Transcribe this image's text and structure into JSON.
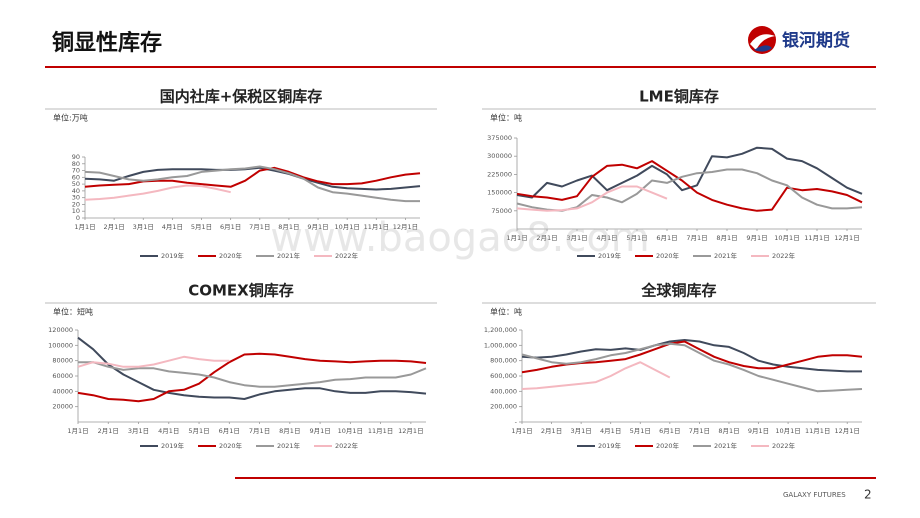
{
  "header": {
    "title": "铜显性库存",
    "logo": "银河期货"
  },
  "footer": {
    "brand": "GALAXY FUTURES",
    "page": "2"
  },
  "watermark": "www.baogao8.com",
  "chart_data": [
    {
      "type": "line",
      "title": "国内社库+保税区铜库存",
      "unit": "单位:万吨",
      "categories": [
        "1月1日",
        null,
        "2月1日",
        null,
        "3月1日",
        null,
        "4月1日",
        null,
        "5月1日",
        null,
        "6月1日",
        null,
        "7月1日",
        null,
        "8月1日",
        null,
        "9月1日",
        null,
        "10月1日",
        null,
        "11月1日",
        null,
        "12月1日",
        null
      ],
      "ylim": [
        0,
        90
      ],
      "yticks": [
        0,
        10,
        20,
        30,
        40,
        50,
        60,
        70,
        80,
        90
      ],
      "series": [
        {
          "name": "2019年",
          "color": "#404a5c",
          "values": [
            58,
            57,
            55,
            62,
            68,
            71,
            72,
            72,
            72,
            71,
            71,
            72,
            74,
            70,
            65,
            58,
            52,
            46,
            44,
            43,
            42,
            43,
            45,
            47
          ]
        },
        {
          "name": "2020年",
          "color": "#c00000",
          "values": [
            46,
            48,
            49,
            50,
            54,
            55,
            55,
            52,
            50,
            48,
            46,
            55,
            70,
            74,
            68,
            60,
            54,
            50,
            50,
            51,
            55,
            60,
            64,
            66
          ]
        },
        {
          "name": "2021年",
          "color": "#999999",
          "values": [
            68,
            67,
            62,
            57,
            55,
            57,
            60,
            62,
            68,
            70,
            72,
            73,
            76,
            72,
            66,
            58,
            45,
            38,
            36,
            33,
            30,
            27,
            25,
            25
          ]
        },
        {
          "name": "2022年",
          "color": "#f4b8c0",
          "values": [
            27,
            28,
            30,
            33,
            36,
            40,
            45,
            48,
            47,
            43,
            38,
            null,
            null,
            null,
            null,
            null,
            null,
            null,
            null,
            null,
            null,
            null,
            null,
            null
          ]
        }
      ]
    },
    {
      "type": "line",
      "title": "LME铜库存",
      "unit": "单位：吨",
      "categories": [
        "1月1日",
        null,
        "2月1日",
        null,
        "3月1日",
        null,
        "4月1日",
        null,
        "5月1日",
        null,
        "6月1日",
        null,
        "7月1日",
        null,
        "8月1日",
        null,
        "9月1日",
        null,
        "10月1日",
        null,
        "11月1日",
        null,
        "12月1日",
        null
      ],
      "ylim": [
        0,
        375000
      ],
      "yticks": [
        75000,
        150000,
        225000,
        300000,
        375000
      ],
      "series": [
        {
          "name": "2019年",
          "color": "#404a5c",
          "values": [
            140000,
            130000,
            190000,
            175000,
            200000,
            220000,
            160000,
            190000,
            220000,
            260000,
            225000,
            160000,
            180000,
            300000,
            295000,
            310000,
            335000,
            330000,
            290000,
            280000,
            250000,
            210000,
            170000,
            145000
          ]
        },
        {
          "name": "2020年",
          "color": "#c00000",
          "values": [
            145000,
            135000,
            130000,
            120000,
            135000,
            215000,
            260000,
            265000,
            250000,
            280000,
            240000,
            200000,
            150000,
            120000,
            100000,
            85000,
            75000,
            80000,
            170000,
            160000,
            165000,
            155000,
            140000,
            110000
          ]
        },
        {
          "name": "2021年",
          "color": "#999999",
          "values": [
            105000,
            90000,
            80000,
            75000,
            90000,
            140000,
            130000,
            110000,
            145000,
            200000,
            190000,
            215000,
            230000,
            235000,
            245000,
            245000,
            230000,
            200000,
            180000,
            130000,
            100000,
            85000,
            85000,
            90000
          ]
        },
        {
          "name": "2022年",
          "color": "#f4b8c0",
          "values": [
            85000,
            80000,
            75000,
            78000,
            85000,
            110000,
            150000,
            175000,
            175000,
            150000,
            125000,
            null,
            null,
            null,
            null,
            null,
            null,
            null,
            null,
            null,
            null,
            null,
            null,
            null
          ]
        }
      ]
    },
    {
      "type": "line",
      "title": "COMEX铜库存",
      "unit": "单位：短吨",
      "categories": [
        "1月1日",
        null,
        "2月1日",
        null,
        "3月1日",
        null,
        "4月1日",
        null,
        "5月1日",
        null,
        "6月1日",
        null,
        "7月1日",
        null,
        "8月1日",
        null,
        "9月1日",
        null,
        "10月1日",
        null,
        "11月1日",
        null,
        "12月1日",
        null
      ],
      "ylim": [
        0,
        120000
      ],
      "yticks": [
        20000,
        40000,
        60000,
        80000,
        100000,
        120000
      ],
      "series": [
        {
          "name": "2019年",
          "color": "#404a5c",
          "values": [
            110000,
            95000,
            75000,
            62000,
            52000,
            42000,
            38000,
            35000,
            33000,
            32000,
            32000,
            30000,
            36000,
            40000,
            42000,
            44000,
            44000,
            40000,
            38000,
            38000,
            40000,
            40000,
            39000,
            37000
          ]
        },
        {
          "name": "2020年",
          "color": "#c00000",
          "values": [
            38000,
            35000,
            30000,
            29000,
            27000,
            30000,
            40000,
            42000,
            50000,
            65000,
            78000,
            88000,
            89000,
            88000,
            85000,
            82000,
            80000,
            79000,
            78000,
            79000,
            80000,
            80000,
            79000,
            77000
          ]
        },
        {
          "name": "2021年",
          "color": "#999999",
          "values": [
            78000,
            78000,
            72000,
            68000,
            70000,
            70000,
            66000,
            64000,
            62000,
            58000,
            52000,
            48000,
            46000,
            46000,
            48000,
            50000,
            52000,
            55000,
            56000,
            58000,
            58000,
            58000,
            62000,
            70000
          ]
        },
        {
          "name": "2022年",
          "color": "#f4b8c0",
          "values": [
            72000,
            78000,
            76000,
            72000,
            72000,
            75000,
            80000,
            85000,
            82000,
            80000,
            80000,
            null,
            null,
            null,
            null,
            null,
            null,
            null,
            null,
            null,
            null,
            null,
            null,
            null
          ]
        }
      ]
    },
    {
      "type": "line",
      "title": "全球铜库存",
      "unit": "单位：吨",
      "categories": [
        "1月1日",
        null,
        "2月1日",
        null,
        "3月1日",
        null,
        "4月1日",
        null,
        "5月1日",
        null,
        "6月1日",
        null,
        "7月1日",
        null,
        "8月1日",
        null,
        "9月1日",
        null,
        "10月1日",
        null,
        "11月1日",
        null,
        "12月1日",
        null
      ],
      "ylim": [
        0,
        1200000
      ],
      "yticks": [
        {
          "value": 0,
          "label": "-"
        },
        {
          "value": 200000,
          "label": "200,000"
        },
        {
          "value": 400000,
          "label": "400,000"
        },
        {
          "value": 600000,
          "label": "600,000"
        },
        {
          "value": 800000,
          "label": "800,000"
        },
        {
          "value": 1000000,
          "label": "1,000,000"
        },
        {
          "value": 1200000,
          "label": "1,200,000"
        }
      ],
      "series": [
        {
          "name": "2019年",
          "color": "#404a5c",
          "values": [
            850000,
            840000,
            850000,
            880000,
            920000,
            950000,
            940000,
            960000,
            940000,
            1000000,
            1050000,
            1070000,
            1050000,
            1000000,
            980000,
            900000,
            800000,
            750000,
            720000,
            700000,
            680000,
            670000,
            660000,
            660000
          ]
        },
        {
          "name": "2020年",
          "color": "#c00000",
          "values": [
            650000,
            680000,
            720000,
            750000,
            770000,
            780000,
            800000,
            820000,
            880000,
            950000,
            1020000,
            1050000,
            950000,
            850000,
            780000,
            730000,
            700000,
            700000,
            750000,
            800000,
            850000,
            870000,
            870000,
            850000
          ]
        },
        {
          "name": "2021年",
          "color": "#999999",
          "values": [
            880000,
            830000,
            780000,
            760000,
            780000,
            820000,
            870000,
            900000,
            950000,
            1000000,
            1020000,
            1000000,
            900000,
            800000,
            750000,
            680000,
            600000,
            550000,
            500000,
            450000,
            400000,
            410000,
            420000,
            430000
          ]
        },
        {
          "name": "2022年",
          "color": "#f4b8c0",
          "values": [
            430000,
            440000,
            460000,
            480000,
            500000,
            520000,
            600000,
            700000,
            780000,
            680000,
            580000,
            null,
            null,
            null,
            null,
            null,
            null,
            null,
            null,
            null,
            null,
            null,
            null,
            null
          ]
        }
      ]
    }
  ]
}
